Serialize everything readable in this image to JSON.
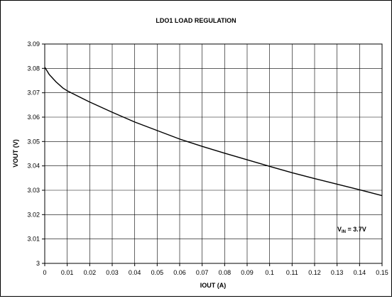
{
  "chart_data": {
    "type": "line",
    "title": "LDO1 LOAD REGULATION",
    "xlabel": "IOUT (A)",
    "ylabel": "VOUT (V)",
    "xlim": [
      0,
      0.15
    ],
    "ylim": [
      3.0,
      3.09
    ],
    "grid": true,
    "x_ticks": [
      "0",
      "0.01",
      "0.02",
      "0.03",
      "0.04",
      "0.05",
      "0.06",
      "0.07",
      "0.08",
      "0.09",
      "0.1",
      "0.11",
      "0.12",
      "0.13",
      "0.14",
      "0.15"
    ],
    "y_ticks": [
      "3",
      "3.01",
      "3.02",
      "3.03",
      "3.04",
      "3.05",
      "3.06",
      "3.07",
      "3.08",
      "3.09"
    ],
    "annotation": {
      "main": "V",
      "sub": "IN",
      "rest": " = 3.7V"
    },
    "series": [
      {
        "x": [
          0,
          0.001,
          0.002,
          0.003,
          0.005,
          0.008,
          0.01,
          0.015,
          0.02,
          0.03,
          0.04,
          0.05,
          0.06,
          0.07,
          0.08,
          0.09,
          0.1,
          0.11,
          0.12,
          0.13,
          0.14,
          0.15
        ],
        "values": [
          3.0805,
          3.079,
          3.0775,
          3.0765,
          3.0745,
          3.072,
          3.0708,
          3.0685,
          3.0662,
          3.062,
          3.058,
          3.0545,
          3.051,
          3.048,
          3.0452,
          3.0425,
          3.0398,
          3.0372,
          3.0348,
          3.0325,
          3.0302,
          3.0278
        ]
      }
    ]
  }
}
